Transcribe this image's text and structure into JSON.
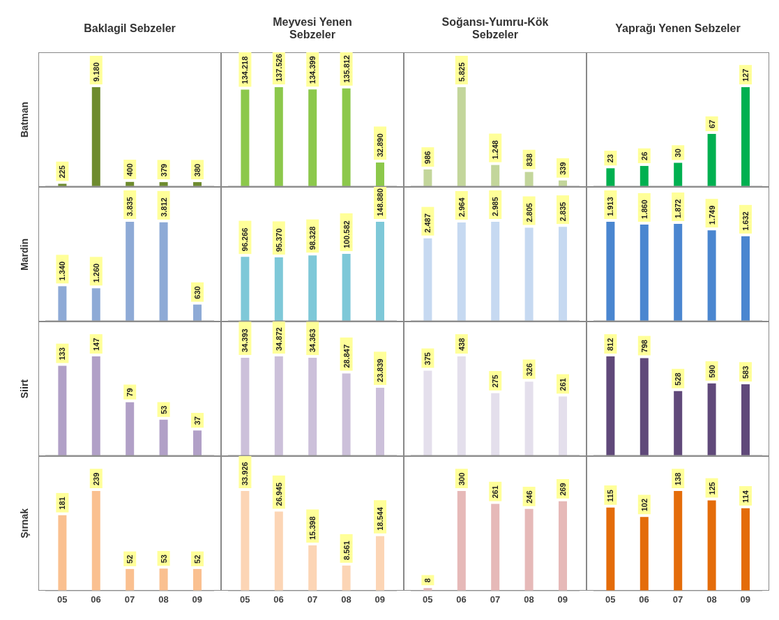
{
  "chart_data": [
    {
      "type": "bar",
      "title": "Baklagil Sebzeler",
      "ylabel": "Batman",
      "categories": [
        "05",
        "06",
        "07",
        "08",
        "09"
      ],
      "values": [
        225,
        9180,
        400,
        379,
        380
      ],
      "value_labels": [
        "225",
        "9.180",
        "400",
        "379",
        "380"
      ],
      "color": "#6e8b2e",
      "tick_labels": false
    },
    {
      "type": "bar",
      "title": "Meyvesi Yenen Sebzeler",
      "categories": [
        "05",
        "06",
        "07",
        "08",
        "09"
      ],
      "values": [
        134218,
        137526,
        134399,
        135812,
        32890
      ],
      "value_labels": [
        "134.218",
        "137.526",
        "134.399",
        "135.812",
        "32.890"
      ],
      "color": "#8cc84b",
      "tick_labels": false
    },
    {
      "type": "bar",
      "title": "Soğansı-Yumru-Kök Sebzeler",
      "categories": [
        "05",
        "06",
        "07",
        "08",
        "09"
      ],
      "values": [
        986,
        5825,
        1248,
        838,
        339
      ],
      "value_labels": [
        "986",
        "5.825",
        "1.248",
        "838",
        "339"
      ],
      "color": "#c3d69b",
      "tick_labels": false
    },
    {
      "type": "bar",
      "title": "Yaprağı Yenen Sebzeler",
      "categories": [
        "05",
        "06",
        "07",
        "08",
        "09"
      ],
      "values": [
        23,
        26,
        30,
        67,
        127
      ],
      "value_labels": [
        "23",
        "26",
        "30",
        "67",
        "127"
      ],
      "color": "#00b050",
      "tick_labels": false
    },
    {
      "type": "bar",
      "ylabel": "Mardin",
      "categories": [
        "05",
        "06",
        "07",
        "08",
        "09"
      ],
      "values": [
        1340,
        1260,
        3835,
        3812,
        630
      ],
      "value_labels": [
        "1.340",
        "1.260",
        "3.835",
        "3.812",
        "630"
      ],
      "color": "#8eaad6",
      "tick_labels": false
    },
    {
      "type": "bar",
      "categories": [
        "05",
        "06",
        "07",
        "08",
        "09"
      ],
      "values": [
        96266,
        95370,
        98328,
        100582,
        148880
      ],
      "value_labels": [
        "96.266",
        "95.370",
        "98.328",
        "100.582",
        "148.880"
      ],
      "color": "#7ec8d8",
      "tick_labels": false
    },
    {
      "type": "bar",
      "categories": [
        "05",
        "06",
        "07",
        "08",
        "09"
      ],
      "values": [
        2487,
        2964,
        2985,
        2805,
        2835
      ],
      "value_labels": [
        "2.487",
        "2.964",
        "2.985",
        "2.805",
        "2.835"
      ],
      "color": "#c6d9f1",
      "tick_labels": false
    },
    {
      "type": "bar",
      "categories": [
        "05",
        "06",
        "07",
        "08",
        "09"
      ],
      "values": [
        1913,
        1860,
        1872,
        1749,
        1632
      ],
      "value_labels": [
        "1.913",
        "1.860",
        "1.872",
        "1.749",
        "1.632"
      ],
      "color": "#4a86d0",
      "tick_labels": false
    },
    {
      "type": "bar",
      "ylabel": "Siirt",
      "categories": [
        "05",
        "06",
        "07",
        "08",
        "09"
      ],
      "values": [
        133,
        147,
        79,
        53,
        37
      ],
      "value_labels": [
        "133",
        "147",
        "79",
        "53",
        "37"
      ],
      "color": "#b1a0c7",
      "tick_labels": false
    },
    {
      "type": "bar",
      "categories": [
        "05",
        "06",
        "07",
        "08",
        "09"
      ],
      "values": [
        34393,
        34872,
        34363,
        28847,
        23839
      ],
      "value_labels": [
        "34.393",
        "34.872",
        "34.363",
        "28.847",
        "23.839"
      ],
      "color": "#ccc0da",
      "tick_labels": false
    },
    {
      "type": "bar",
      "categories": [
        "05",
        "06",
        "07",
        "08",
        "09"
      ],
      "values": [
        375,
        438,
        275,
        326,
        261
      ],
      "value_labels": [
        "375",
        "438",
        "275",
        "326",
        "261"
      ],
      "color": "#e4dfec",
      "tick_labels": false
    },
    {
      "type": "bar",
      "categories": [
        "05",
        "06",
        "07",
        "08",
        "09"
      ],
      "values": [
        812,
        798,
        528,
        590,
        583
      ],
      "value_labels": [
        "812",
        "798",
        "528",
        "590",
        "583"
      ],
      "color": "#60497a",
      "tick_labels": false
    },
    {
      "type": "bar",
      "ylabel": "Şırnak",
      "categories": [
        "05",
        "06",
        "07",
        "08",
        "09"
      ],
      "values": [
        181,
        239,
        52,
        53,
        52
      ],
      "value_labels": [
        "181",
        "239",
        "52",
        "53",
        "52"
      ],
      "color": "#fac090",
      "tick_labels": "x"
    },
    {
      "type": "bar",
      "categories": [
        "05",
        "06",
        "07",
        "08",
        "09"
      ],
      "values": [
        33926,
        26945,
        15398,
        8561,
        18544
      ],
      "value_labels": [
        "33.926",
        "26.945",
        "15.398",
        "8.561",
        "18.544"
      ],
      "color": "#fcd5b5",
      "tick_labels": "x"
    },
    {
      "type": "bar",
      "categories": [
        "05",
        "06",
        "07",
        "08",
        "09"
      ],
      "values": [
        8,
        300,
        261,
        246,
        269
      ],
      "value_labels": [
        "8",
        "300",
        "261",
        "246",
        "269"
      ],
      "color": "#e6b9b8",
      "tick_labels": "x"
    },
    {
      "type": "bar",
      "categories": [
        "05",
        "06",
        "07",
        "08",
        "09"
      ],
      "values": [
        115,
        102,
        138,
        125,
        114
      ],
      "value_labels": [
        "115",
        "102",
        "138",
        "125",
        "114"
      ],
      "color": "#e46c0a",
      "tick_labels": "x"
    }
  ]
}
